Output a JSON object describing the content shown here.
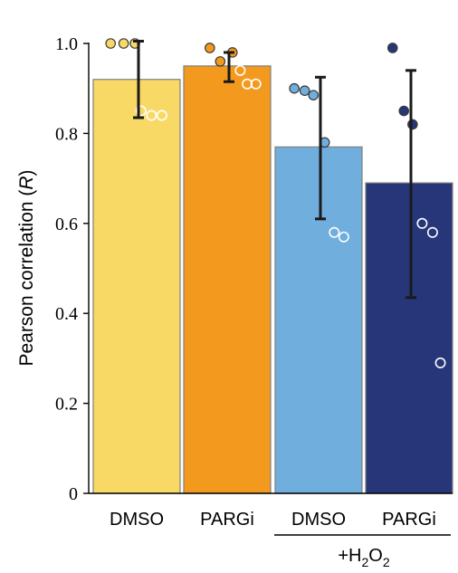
{
  "chart_data": {
    "type": "bar",
    "ylabel_text": "Pearson correlation",
    "ylabel_var": "R",
    "ylim": [
      0,
      1.0
    ],
    "yticks": [
      "0",
      "0.2",
      "0.4",
      "0.6",
      "0.8",
      "1.0"
    ],
    "categories": [
      "DMSO",
      "PARGi",
      "DMSO",
      "PARGi"
    ],
    "values": [
      0.92,
      0.95,
      0.77,
      0.69
    ],
    "errors": [
      [
        0.835,
        1.005
      ],
      [
        0.915,
        0.98
      ],
      [
        0.61,
        0.925
      ],
      [
        0.435,
        0.94
      ]
    ],
    "bar_colors": [
      "#F9D966",
      "#F39A1E",
      "#70AEDE",
      "#263678"
    ],
    "points": [
      [
        {
          "x": -0.3,
          "y": 1.0,
          "f": 1
        },
        {
          "x": -0.15,
          "y": 1.0,
          "f": 1
        },
        {
          "x": -0.02,
          "y": 1.0,
          "f": 1
        },
        {
          "x": 0.05,
          "y": 0.85,
          "f": 0
        },
        {
          "x": 0.17,
          "y": 0.84,
          "f": 0
        },
        {
          "x": 0.29,
          "y": 0.84,
          "f": 0
        }
      ],
      [
        {
          "x": -0.2,
          "y": 0.99,
          "f": 1
        },
        {
          "x": -0.08,
          "y": 0.96,
          "f": 1
        },
        {
          "x": 0.06,
          "y": 0.98,
          "f": 1
        },
        {
          "x": 0.15,
          "y": 0.94,
          "f": 0
        },
        {
          "x": 0.23,
          "y": 0.91,
          "f": 0
        },
        {
          "x": 0.33,
          "y": 0.91,
          "f": 0
        }
      ],
      [
        {
          "x": -0.28,
          "y": 0.9,
          "f": 1
        },
        {
          "x": -0.16,
          "y": 0.895,
          "f": 1
        },
        {
          "x": -0.06,
          "y": 0.885,
          "f": 1
        },
        {
          "x": 0.07,
          "y": 0.78,
          "f": 1
        },
        {
          "x": 0.18,
          "y": 0.58,
          "f": 0
        },
        {
          "x": 0.29,
          "y": 0.57,
          "f": 0
        }
      ],
      [
        {
          "x": -0.19,
          "y": 0.99,
          "f": 1
        },
        {
          "x": -0.06,
          "y": 0.85,
          "f": 1
        },
        {
          "x": 0.04,
          "y": 0.82,
          "f": 1
        },
        {
          "x": 0.15,
          "y": 0.6,
          "f": 0
        },
        {
          "x": 0.27,
          "y": 0.58,
          "f": 0
        },
        {
          "x": 0.36,
          "y": 0.29,
          "f": 0
        }
      ]
    ],
    "group_label": "+H",
    "group_sub1": "2",
    "group_mid": "O",
    "group_sub2": "2",
    "grid": false
  }
}
